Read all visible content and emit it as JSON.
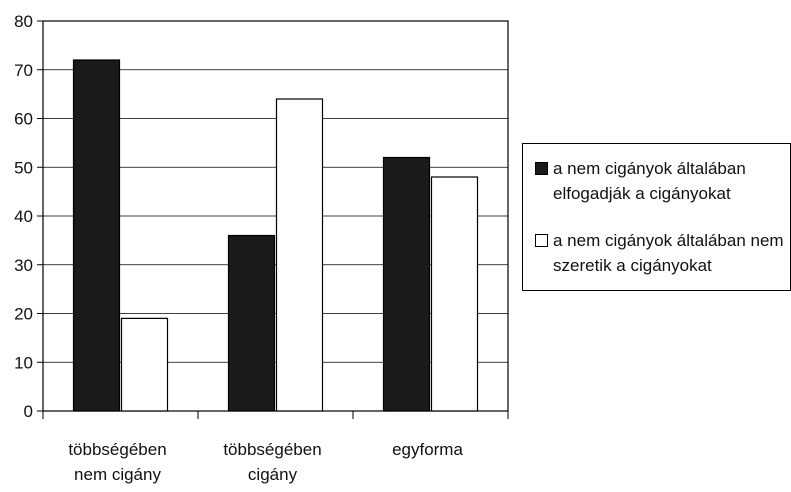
{
  "chart_data": {
    "type": "bar",
    "categories": [
      "többségében nem cigány",
      "többségében cigány",
      "egyforma"
    ],
    "category_lines": [
      [
        "többségében",
        "nem cigány"
      ],
      [
        "többségében",
        "cigány"
      ],
      [
        "egyforma"
      ]
    ],
    "series": [
      {
        "name": "a nem cigányok általában elfogadják a cigányokat",
        "values": [
          72,
          36,
          52
        ],
        "color": "#1a1a1a"
      },
      {
        "name": "a nem cigányok általában nem szeretik a cigányokat",
        "values": [
          19,
          64,
          48
        ],
        "color": "#ffffff"
      }
    ],
    "yticks": [
      "0",
      "10",
      "20",
      "30",
      "40",
      "50",
      "60",
      "70",
      "80"
    ],
    "ylim": [
      0,
      80
    ],
    "grid": true,
    "legend": "right",
    "legend_lines": [
      [
        "a nem cigányok általában",
        "elfogadják a cigányokat"
      ],
      [
        "a nem cigányok általában nem",
        "szeretik a cigányokat"
      ]
    ]
  }
}
